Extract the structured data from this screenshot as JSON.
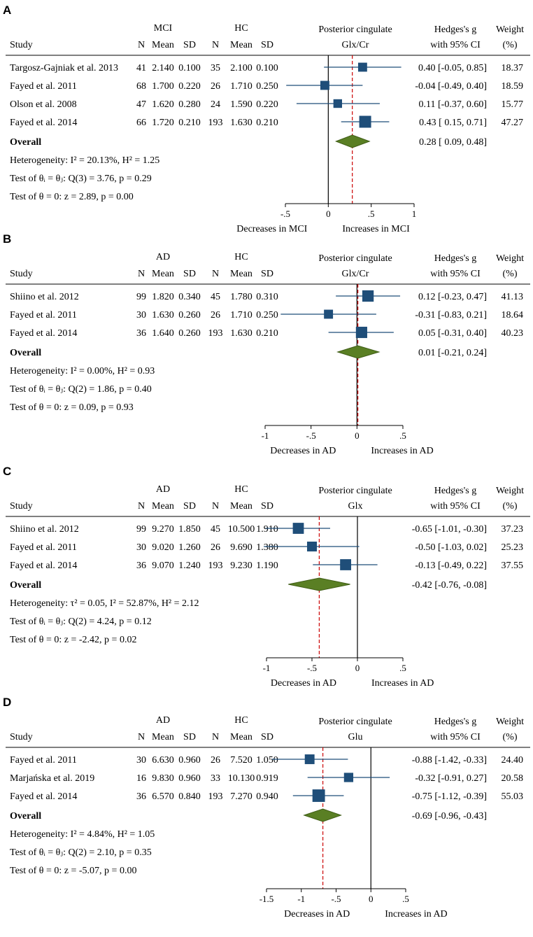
{
  "figure": {
    "colors": {
      "marker": "#1f4e79",
      "diamond": "#5a7f24",
      "diamond_edge": "#3f5d16",
      "null_line": "#000000",
      "ref_line": "#cc0000"
    }
  },
  "chart_data": [
    {
      "type": "forest",
      "panel": "A",
      "title": "Posterior cingulate",
      "metabolite": "Glx/Cr",
      "group_label": "MCI",
      "control_label": "HC",
      "headers": {
        "study": "Study",
        "n": "N",
        "mean": "Mean",
        "sd": "SD",
        "effect1": "Hedges's g",
        "effect2": "with 95% CI",
        "weight1": "Weight",
        "weight2": "(%)"
      },
      "studies": [
        {
          "name": "Targosz-Gajniak et al. 2013",
          "n1": "41",
          "mean1": "2.140",
          "sd1": "0.100",
          "n2": "35",
          "mean2": "2.100",
          "sd2": "0.100",
          "g": 0.4,
          "lo": -0.05,
          "hi": 0.85,
          "ci_text": "0.40 [-0.05,  0.85]",
          "weight": 18.37,
          "weight_text": "18.37"
        },
        {
          "name": "Fayed et al. 2011",
          "n1": "68",
          "mean1": "1.700",
          "sd1": "0.220",
          "n2": "26",
          "mean2": "1.710",
          "sd2": "0.250",
          "g": -0.04,
          "lo": -0.49,
          "hi": 0.4,
          "ci_text": "-0.04 [-0.49,  0.40]",
          "weight": 18.59,
          "weight_text": "18.59"
        },
        {
          "name": "Olson et al. 2008",
          "n1": "47",
          "mean1": "1.620",
          "sd1": "0.280",
          "n2": "24",
          "mean2": "1.590",
          "sd2": "0.220",
          "g": 0.11,
          "lo": -0.37,
          "hi": 0.6,
          "ci_text": "0.11 [-0.37,  0.60]",
          "weight": 15.77,
          "weight_text": "15.77"
        },
        {
          "name": "Fayed et al. 2014",
          "n1": "66",
          "mean1": "1.720",
          "sd1": "0.210",
          "n2": "193",
          "mean2": "1.630",
          "sd2": "0.210",
          "g": 0.43,
          "lo": 0.15,
          "hi": 0.71,
          "ci_text": "0.43 [ 0.15,  0.71]",
          "weight": 47.27,
          "weight_text": "47.27"
        }
      ],
      "overall": {
        "label": "Overall",
        "g": 0.28,
        "lo": 0.09,
        "hi": 0.48,
        "ci_text": "0.28 [ 0.09,  0.48]"
      },
      "stats": {
        "heterogeneity": "Heterogeneity: I² = 20.13%, H² = 1.25",
        "test_equal": "Test of θᵢ = θⱼ: Q(3) = 3.76, p = 0.29",
        "test_zero": "Test of θ = 0: z = 2.89, p = 0.00"
      },
      "xlim": [
        -0.5,
        1
      ],
      "xticks": [
        -0.5,
        0,
        0.5,
        1
      ],
      "xtick_labels": [
        "-.5",
        "0",
        ".5",
        "1"
      ],
      "xlabel_left": "Decreases in MCI",
      "xlabel_right": "Increases in MCI"
    },
    {
      "type": "forest",
      "panel": "B",
      "title": "Posterior cingulate",
      "metabolite": "Glx/Cr",
      "group_label": "AD",
      "control_label": "HC",
      "headers": {
        "study": "Study",
        "n": "N",
        "mean": "Mean",
        "sd": "SD",
        "effect1": "Hedges's g",
        "effect2": "with 95% CI",
        "weight1": "Weight",
        "weight2": "(%)"
      },
      "studies": [
        {
          "name": "Shiino et al. 2012",
          "n1": "99",
          "mean1": "1.820",
          "sd1": "0.340",
          "n2": "45",
          "mean2": "1.780",
          "sd2": "0.310",
          "g": 0.12,
          "lo": -0.23,
          "hi": 0.47,
          "ci_text": "0.12 [-0.23,  0.47]",
          "weight": 41.13,
          "weight_text": "41.13"
        },
        {
          "name": "Fayed et al. 2011",
          "n1": "30",
          "mean1": "1.630",
          "sd1": "0.260",
          "n2": "26",
          "mean2": "1.710",
          "sd2": "0.250",
          "g": -0.31,
          "lo": -0.83,
          "hi": 0.21,
          "ci_text": "-0.31 [-0.83,  0.21]",
          "weight": 18.64,
          "weight_text": "18.64"
        },
        {
          "name": "Fayed et al. 2014",
          "n1": "36",
          "mean1": "1.640",
          "sd1": "0.260",
          "n2": "193",
          "mean2": "1.630",
          "sd2": "0.210",
          "g": 0.05,
          "lo": -0.31,
          "hi": 0.4,
          "ci_text": "0.05 [-0.31,  0.40]",
          "weight": 40.23,
          "weight_text": "40.23"
        }
      ],
      "overall": {
        "label": "Overall",
        "g": 0.01,
        "lo": -0.21,
        "hi": 0.24,
        "ci_text": "0.01 [-0.21,  0.24]"
      },
      "stats": {
        "heterogeneity": "Heterogeneity: I² = 0.00%, H² = 0.93",
        "test_equal": "Test of θᵢ = θⱼ: Q(2) = 1.86, p = 0.40",
        "test_zero": "Test of θ = 0: z = 0.09, p = 0.93"
      },
      "xlim": [
        -1,
        0.5
      ],
      "xticks": [
        -1,
        -0.5,
        0,
        0.5
      ],
      "xtick_labels": [
        "-1",
        "-.5",
        "0",
        ".5"
      ],
      "xlabel_left": "Decreases in AD",
      "xlabel_right": "Increases in AD"
    },
    {
      "type": "forest",
      "panel": "C",
      "title": "Posterior cingulate",
      "metabolite": "Glx",
      "group_label": "AD",
      "control_label": "HC",
      "headers": {
        "study": "Study",
        "n": "N",
        "mean": "Mean",
        "sd": "SD",
        "effect1": "Hedges's g",
        "effect2": "with 95% CI",
        "weight1": "Weight",
        "weight2": "(%)"
      },
      "studies": [
        {
          "name": "Shiino et al. 2012",
          "n1": "99",
          "mean1": "9.270",
          "sd1": "1.850",
          "n2": "45",
          "mean2": "10.500",
          "sd2": "1.910",
          "g": -0.65,
          "lo": -1.01,
          "hi": -0.3,
          "ci_text": "-0.65 [-1.01, -0.30]",
          "weight": 37.23,
          "weight_text": "37.23"
        },
        {
          "name": "Fayed et al. 2011",
          "n1": "30",
          "mean1": "9.020",
          "sd1": "1.260",
          "n2": "26",
          "mean2": "9.690",
          "sd2": "1.380",
          "g": -0.5,
          "lo": -1.03,
          "hi": 0.02,
          "ci_text": "-0.50 [-1.03,  0.02]",
          "weight": 25.23,
          "weight_text": "25.23"
        },
        {
          "name": "Fayed et al. 2014",
          "n1": "36",
          "mean1": "9.070",
          "sd1": "1.240",
          "n2": "193",
          "mean2": "9.230",
          "sd2": "1.190",
          "g": -0.13,
          "lo": -0.49,
          "hi": 0.22,
          "ci_text": "-0.13 [-0.49,  0.22]",
          "weight": 37.55,
          "weight_text": "37.55"
        }
      ],
      "overall": {
        "label": "Overall",
        "g": -0.42,
        "lo": -0.76,
        "hi": -0.08,
        "ci_text": "-0.42 [-0.76, -0.08]"
      },
      "stats": {
        "heterogeneity": "Heterogeneity: τ² = 0.05, I² = 52.87%, H² = 2.12",
        "test_equal": "Test of θᵢ = θⱼ: Q(2) = 4.24, p = 0.12",
        "test_zero": "Test of θ = 0: z = -2.42, p = 0.02"
      },
      "xlim": [
        -1,
        0.5
      ],
      "xticks": [
        -1,
        -0.5,
        0,
        0.5
      ],
      "xtick_labels": [
        "-1",
        "-.5",
        "0",
        ".5"
      ],
      "xlabel_left": "Decreases in AD",
      "xlabel_right": "Increases in AD"
    },
    {
      "type": "forest",
      "panel": "D",
      "title": "Posterior cingulate",
      "metabolite": "Glu",
      "group_label": "AD",
      "control_label": "HC",
      "headers": {
        "study": "Study",
        "n": "N",
        "mean": "Mean",
        "sd": "SD",
        "effect1": "Hedges's g",
        "effect2": "with 95% CI",
        "weight1": "Weight",
        "weight2": "(%)"
      },
      "studies": [
        {
          "name": "Fayed et al. 2011",
          "n1": "30",
          "mean1": "6.630",
          "sd1": "0.960",
          "n2": "26",
          "mean2": "7.520",
          "sd2": "1.050",
          "g": -0.88,
          "lo": -1.42,
          "hi": -0.33,
          "ci_text": "-0.88 [-1.42, -0.33]",
          "weight": 24.4,
          "weight_text": "24.40"
        },
        {
          "name": "Marjańska et al. 2019",
          "n1": "16",
          "mean1": "9.830",
          "sd1": "0.960",
          "n2": "33",
          "mean2": "10.130",
          "sd2": "0.919",
          "g": -0.32,
          "lo": -0.91,
          "hi": 0.27,
          "ci_text": "-0.32 [-0.91,  0.27]",
          "weight": 20.58,
          "weight_text": "20.58"
        },
        {
          "name": "Fayed et al. 2014",
          "n1": "36",
          "mean1": "6.570",
          "sd1": "0.840",
          "n2": "193",
          "mean2": "7.270",
          "sd2": "0.940",
          "g": -0.75,
          "lo": -1.12,
          "hi": -0.39,
          "ci_text": "-0.75 [-1.12, -0.39]",
          "weight": 55.03,
          "weight_text": "55.03"
        }
      ],
      "overall": {
        "label": "Overall",
        "g": -0.69,
        "lo": -0.96,
        "hi": -0.43,
        "ci_text": "-0.69 [-0.96, -0.43]"
      },
      "stats": {
        "heterogeneity": "Heterogeneity: I² = 4.84%, H² = 1.05",
        "test_equal": "Test of θᵢ = θⱼ: Q(2) = 2.10, p = 0.35",
        "test_zero": "Test of θ = 0: z = -5.07, p = 0.00"
      },
      "xlim": [
        -1.5,
        0.5
      ],
      "xticks": [
        -1.5,
        -1,
        -0.5,
        0,
        0.5
      ],
      "xtick_labels": [
        "-1.5",
        "-1",
        "-.5",
        "0",
        ".5"
      ],
      "xlabel_left": "Decreases in AD",
      "xlabel_right": "Increases in AD"
    }
  ]
}
